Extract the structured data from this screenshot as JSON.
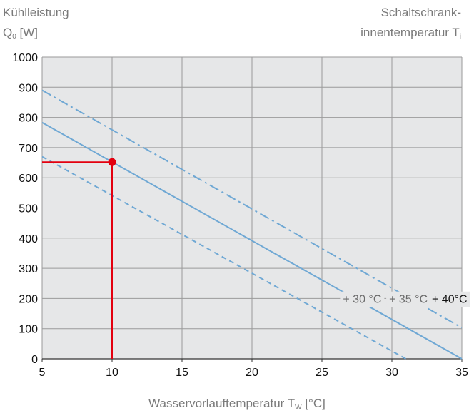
{
  "chart_data": {
    "type": "line",
    "ylabel_line1": "Kühlleistung",
    "ylabel_symbol": "Q",
    "ylabel_sub": "0",
    "ylabel_unit": "[W]",
    "right_label_line1": "Schaltschrank-",
    "right_label_line2": "innentemperatur T",
    "right_label_sub": "i",
    "xlabel_text": "Wasservorlauftemperatur T",
    "xlabel_sub": "W",
    "xlabel_unit": "[°C]",
    "xlim": [
      5,
      35
    ],
    "ylim": [
      0,
      1000
    ],
    "x_ticks": [
      5,
      10,
      15,
      20,
      25,
      30,
      35
    ],
    "y_ticks": [
      0,
      100,
      200,
      300,
      400,
      500,
      600,
      700,
      800,
      900,
      1000
    ],
    "grid": true,
    "series": [
      {
        "name": "+ 30 °C",
        "style": "dashed",
        "color": "#6fa8d4",
        "x": [
          5,
          31
        ],
        "y": [
          670,
          0
        ]
      },
      {
        "name": "+ 35 °C",
        "style": "solid",
        "color": "#6fa8d4",
        "x": [
          5,
          35
        ],
        "y": [
          783,
          0
        ]
      },
      {
        "name": "+ 40°C",
        "style": "dashdot",
        "color": "#6fa8d4",
        "x": [
          5,
          35
        ],
        "y": [
          890,
          103
        ]
      }
    ],
    "series_label_positions_data": [
      [
        26.5,
        185
      ],
      [
        29.8,
        185
      ],
      [
        35.2,
        185
      ]
    ],
    "operating_point": {
      "x": 10,
      "y": 652,
      "color": "#e3000f"
    }
  }
}
